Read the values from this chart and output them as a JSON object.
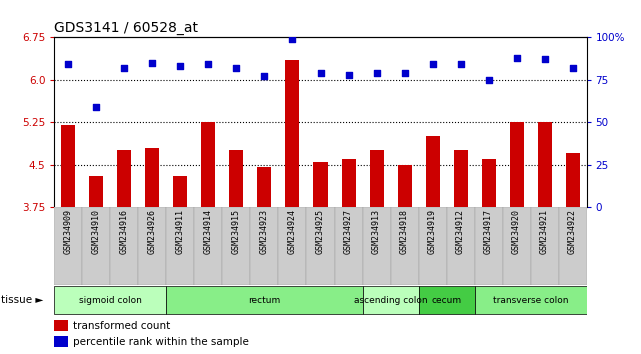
{
  "title": "GDS3141 / 60528_at",
  "samples": [
    "GSM234909",
    "GSM234910",
    "GSM234916",
    "GSM234926",
    "GSM234911",
    "GSM234914",
    "GSM234915",
    "GSM234923",
    "GSM234924",
    "GSM234925",
    "GSM234927",
    "GSM234913",
    "GSM234918",
    "GSM234919",
    "GSM234912",
    "GSM234917",
    "GSM234920",
    "GSM234921",
    "GSM234922"
  ],
  "bar_values": [
    5.2,
    4.3,
    4.75,
    4.8,
    4.3,
    5.25,
    4.75,
    4.45,
    6.35,
    4.55,
    4.6,
    4.75,
    4.5,
    5.0,
    4.75,
    4.6,
    5.25,
    5.25,
    4.7
  ],
  "dot_values": [
    84,
    59,
    82,
    85,
    83,
    84,
    82,
    77,
    99,
    79,
    78,
    79,
    79,
    84,
    84,
    75,
    88,
    87,
    82
  ],
  "ylim_left": [
    3.75,
    6.75
  ],
  "ylim_right": [
    0,
    100
  ],
  "yticks_left": [
    3.75,
    4.5,
    5.25,
    6.0,
    6.75
  ],
  "yticks_right": [
    0,
    25,
    50,
    75,
    100
  ],
  "hlines": [
    6.0,
    5.25,
    4.5
  ],
  "bar_color": "#cc0000",
  "dot_color": "#0000cc",
  "tissue_groups": [
    {
      "label": "sigmoid colon",
      "start": 0,
      "end": 4,
      "color": "#bbffbb"
    },
    {
      "label": "rectum",
      "start": 4,
      "end": 11,
      "color": "#88ee88"
    },
    {
      "label": "ascending colon",
      "start": 11,
      "end": 13,
      "color": "#bbffbb"
    },
    {
      "label": "cecum",
      "start": 13,
      "end": 15,
      "color": "#44cc44"
    },
    {
      "label": "transverse colon",
      "start": 15,
      "end": 19,
      "color": "#88ee88"
    }
  ],
  "tissue_label": "tissue ►",
  "legend_bar_label": "transformed count",
  "legend_dot_label": "percentile rank within the sample",
  "bar_color_legend": "#cc0000",
  "dot_color_legend": "#0000cc",
  "tick_bg_color": "#cccccc",
  "plot_bg_color": "#ffffff",
  "title_fontsize": 10,
  "bar_width": 0.5
}
